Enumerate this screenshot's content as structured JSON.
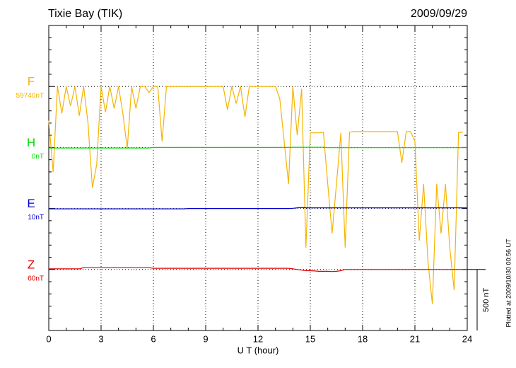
{
  "chart_data": {
    "type": "line",
    "title": "Tixie Bay (TIK)",
    "date": "2009/09/29",
    "xlabel": "U T (hour)",
    "note": "Plotted at 2009/10/30 00:56 UT",
    "xlim": [
      0,
      24
    ],
    "xticks": [
      0,
      3,
      6,
      9,
      12,
      15,
      18,
      21,
      24
    ],
    "xminor": [
      1,
      2,
      4,
      5,
      7,
      8,
      10,
      11,
      13,
      14,
      16,
      17,
      19,
      20,
      22,
      23
    ],
    "ylim": [
      0,
      2500
    ],
    "yticks": [
      500,
      1000,
      1500,
      2000
    ],
    "yminor": [
      100,
      200,
      300,
      400,
      600,
      700,
      800,
      900,
      1100,
      1200,
      1300,
      1400,
      1600,
      1700,
      1800,
      1900,
      2100,
      2200,
      2300,
      2400
    ],
    "grid": true,
    "scale_bar": {
      "label": "500 nT",
      "range": [
        0,
        500
      ]
    },
    "x": [
      0,
      0.25,
      0.5,
      0.75,
      1,
      1.25,
      1.5,
      1.75,
      2,
      2.25,
      2.5,
      2.75,
      3,
      3.25,
      3.5,
      3.75,
      4,
      4.25,
      4.5,
      4.75,
      5,
      5.25,
      5.5,
      5.75,
      6,
      6.25,
      6.5,
      6.75,
      7,
      7.25,
      7.5,
      7.75,
      8,
      8.25,
      8.5,
      8.75,
      9,
      9.25,
      9.5,
      9.75,
      10,
      10.25,
      10.5,
      10.75,
      11,
      11.25,
      11.5,
      11.75,
      12,
      12.25,
      12.5,
      12.75,
      13,
      13.25,
      13.5,
      13.75,
      14,
      14.25,
      14.5,
      14.75,
      15,
      15.25,
      15.5,
      15.75,
      16,
      16.25,
      16.5,
      16.75,
      17,
      17.25,
      17.5,
      17.75,
      18,
      18.25,
      18.5,
      18.75,
      19,
      19.25,
      19.5,
      19.75,
      20,
      20.25,
      20.5,
      20.75,
      21,
      21.25,
      21.5,
      21.75,
      22,
      22.25,
      22.5,
      22.75,
      23,
      23.25,
      23.5,
      23.75,
      24
    ],
    "series": [
      {
        "name": "F",
        "base_label": "59740nT",
        "color": "#f5b400",
        "values": [
          1720,
          1300,
          2000,
          1780,
          2000,
          1840,
          2000,
          1760,
          2000,
          1700,
          1170,
          1360,
          2000,
          1790,
          2000,
          1820,
          2000,
          1780,
          1490,
          2000,
          1820,
          2000,
          2000,
          1950,
          2000,
          2000,
          1550,
          2000,
          2000,
          2000,
          2000,
          2000,
          2000,
          2000,
          2000,
          2000,
          2000,
          2000,
          2000,
          2000,
          2000,
          1810,
          2000,
          1860,
          2000,
          1750,
          2000,
          2000,
          2000,
          2000,
          2000,
          2000,
          2000,
          1900,
          1550,
          1200,
          2000,
          1600,
          1980,
          680,
          1620,
          1620,
          1620,
          1625,
          1200,
          795,
          1200,
          1620,
          680,
          1625,
          1630,
          1630,
          1630,
          1630,
          1630,
          1630,
          1630,
          1630,
          1630,
          1630,
          1630,
          1375,
          1630,
          1630,
          1550,
          737,
          1200,
          563,
          215,
          1200,
          795,
          1200,
          679,
          330,
          1624,
          1624,
          null
        ]
      },
      {
        "name": "H",
        "base_label": "0nT",
        "color": "#00dd00",
        "values": [
          1496,
          1496,
          1496,
          1496,
          1496,
          1496,
          1496,
          1496,
          1496,
          1496,
          1496,
          1496,
          1496,
          1496,
          1496,
          1496,
          1496,
          1496,
          1496,
          1496,
          1496,
          1496,
          1496,
          1496,
          1500,
          1500,
          1500,
          1500,
          1500,
          1500,
          1500,
          1500,
          1500,
          1500,
          1500,
          1500,
          1500,
          1500,
          1500,
          1500,
          1500,
          1500,
          1500,
          1500,
          1500,
          1500,
          1500,
          1500,
          1500,
          1500,
          1500,
          1500,
          1500,
          1500,
          1500,
          1500,
          1502,
          1502,
          1502,
          1502,
          1502,
          1502,
          1502,
          1502,
          1498,
          1498,
          1498,
          1498,
          1498,
          1498,
          1498,
          1498,
          1498,
          1498,
          1498,
          1498,
          1498,
          1498,
          1498,
          1498,
          1498,
          1498,
          1498,
          1498,
          1498,
          1498,
          1498,
          1498,
          1498,
          1498,
          1498,
          1498,
          1498,
          1498,
          1498,
          1498,
          1498
        ]
      },
      {
        "name": "E",
        "base_label": "10nT",
        "color": "#0000cc",
        "values": [
          997,
          997,
          997,
          997,
          997,
          997,
          997,
          997,
          997,
          997,
          997,
          997,
          997,
          997,
          997,
          997,
          997,
          997,
          997,
          997,
          997,
          997,
          997,
          997,
          997,
          997,
          997,
          997,
          997,
          997,
          997,
          997,
          1000,
          1000,
          1000,
          1000,
          1000,
          1000,
          1000,
          1000,
          1000,
          1000,
          1000,
          1000,
          1000,
          1000,
          1000,
          1000,
          1000,
          1000,
          1000,
          1000,
          1000,
          1000,
          1000,
          1000,
          1002,
          1005,
          1008,
          1006,
          1005,
          1005,
          1005,
          1005,
          1005,
          1005,
          1005,
          1005,
          1005,
          1005,
          1005,
          1005,
          1005,
          1005,
          1005,
          1005,
          1005,
          1005,
          1005,
          1005,
          1005,
          1005,
          1005,
          1005,
          1005,
          1005,
          1005,
          1005,
          1005,
          1005,
          1005,
          1005,
          1005,
          1005,
          1005,
          1005,
          1005
        ]
      },
      {
        "name": "Z",
        "base_label": "60nT",
        "color": "#dd0000",
        "values": [
          505,
          505,
          505,
          505,
          505,
          505,
          505,
          505,
          515,
          515,
          515,
          515,
          515,
          515,
          515,
          515,
          515,
          515,
          515,
          515,
          515,
          515,
          515,
          515,
          510,
          510,
          510,
          510,
          510,
          510,
          510,
          510,
          510,
          510,
          510,
          510,
          510,
          510,
          510,
          510,
          510,
          510,
          510,
          510,
          510,
          510,
          510,
          510,
          510,
          510,
          510,
          510,
          510,
          510,
          510,
          510,
          505,
          500,
          495,
          490,
          490,
          488,
          485,
          485,
          485,
          483,
          485,
          490,
          500,
          500,
          500,
          500,
          500,
          500,
          500,
          500,
          500,
          500,
          500,
          500,
          500,
          500,
          500,
          500,
          500,
          500,
          500,
          500,
          500,
          500,
          500,
          500,
          500,
          500,
          500,
          500,
          500
        ]
      }
    ]
  }
}
